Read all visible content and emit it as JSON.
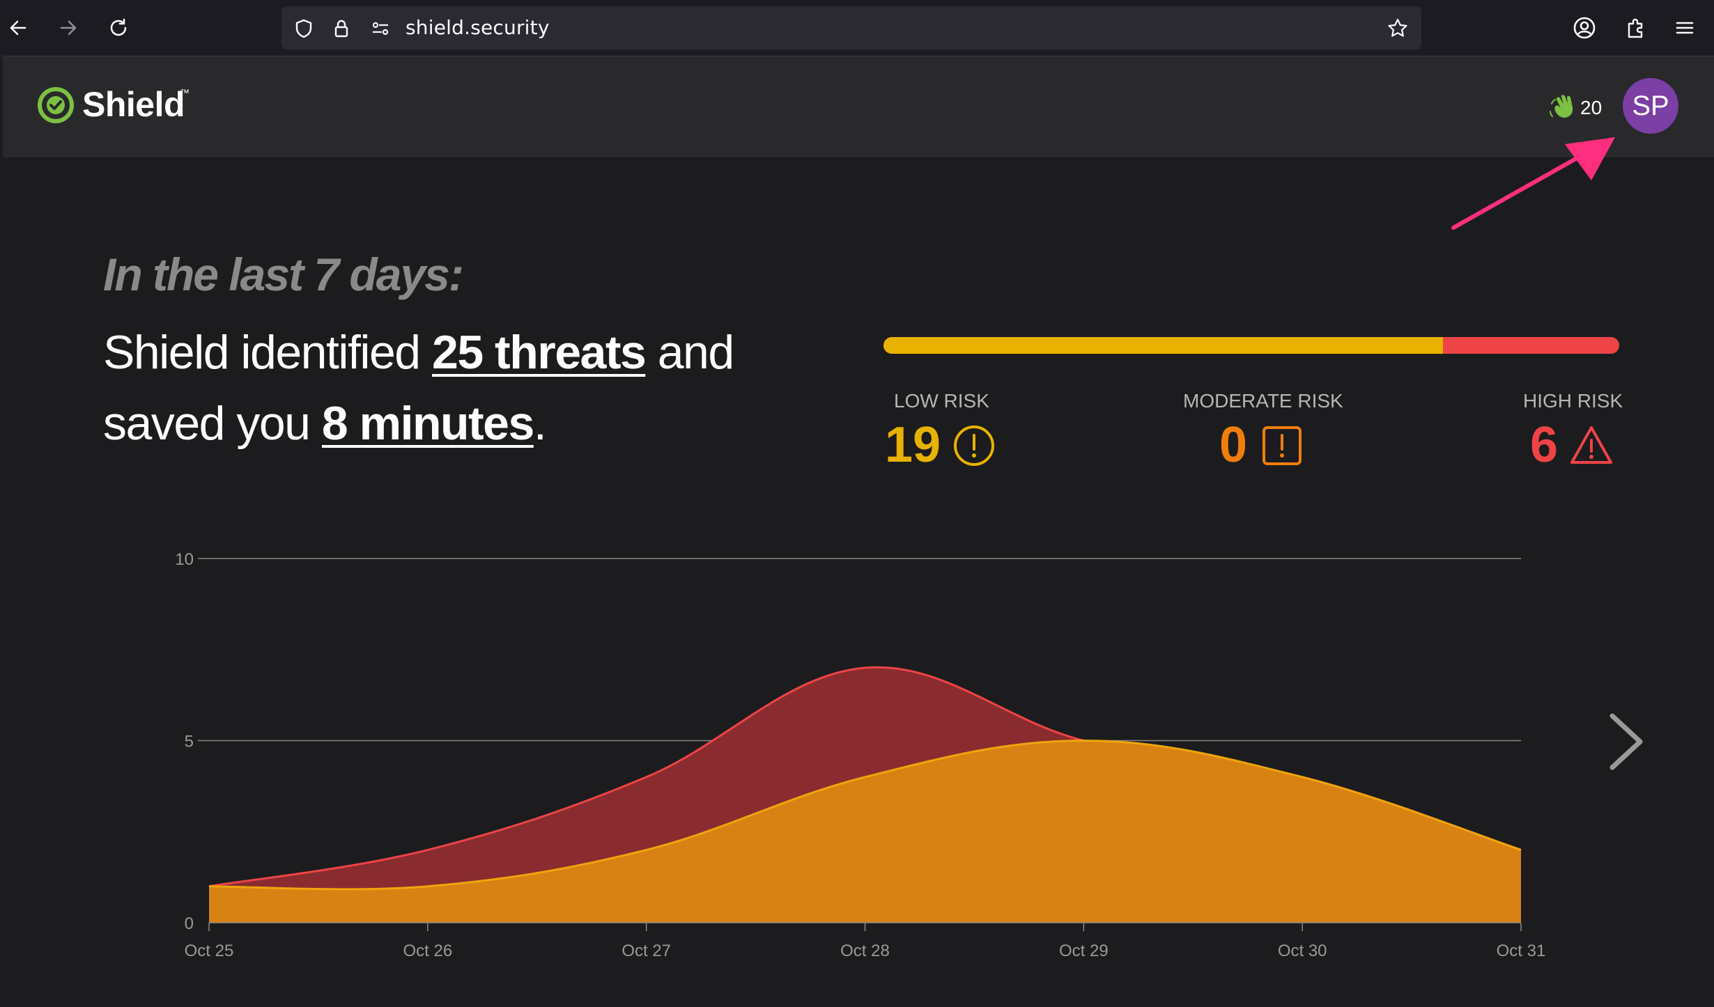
{
  "browser": {
    "url": "shield.security",
    "icons": [
      "back-icon",
      "forward-icon",
      "reload-icon",
      "shield-icon",
      "lock-icon",
      "permissions-icon",
      "bookmark-star-icon",
      "account-icon",
      "extensions-icon",
      "menu-icon"
    ]
  },
  "header": {
    "brand": "Shield",
    "trademark": "™",
    "points": "20",
    "avatar_initials": "SP",
    "colors": {
      "brand_green": "#7cc142",
      "avatar": "#7b3fa5",
      "callout": "#ff2e7e"
    }
  },
  "summary": {
    "period": "In the last 7 days:",
    "line_prefix": "Shield identified ",
    "threats": "25 threats",
    "line_mid": " and",
    "line2_prefix": "saved you ",
    "saved": "8 minutes",
    "line2_suffix": "."
  },
  "risk": {
    "breakdown": [
      {
        "label": "LOW RISK",
        "value": "19",
        "count": 19,
        "color": "#e8b200",
        "icon": "info-circle-icon"
      },
      {
        "label": "MODERATE RISK",
        "value": "0",
        "count": 0,
        "color": "#f07d0e",
        "icon": "alert-square-icon"
      },
      {
        "label": "HIGH RISK",
        "value": "6",
        "count": 6,
        "color": "#ee4447",
        "icon": "warning-triangle-icon"
      }
    ]
  },
  "chart_data": {
    "type": "area",
    "categories": [
      "Oct 25",
      "Oct 26",
      "Oct 27",
      "Oct 28",
      "Oct 29",
      "Oct 30",
      "Oct 31"
    ],
    "y_ticks": [
      "0",
      "5",
      "10"
    ],
    "ylim": [
      0,
      10
    ],
    "grid": true,
    "series": [
      {
        "values": [
          1,
          2,
          4,
          7,
          5,
          4,
          2
        ],
        "color": "#ee4447"
      },
      {
        "values": [
          1,
          1,
          2,
          4,
          5,
          4,
          2
        ],
        "color": "#f0a50e"
      }
    ]
  }
}
